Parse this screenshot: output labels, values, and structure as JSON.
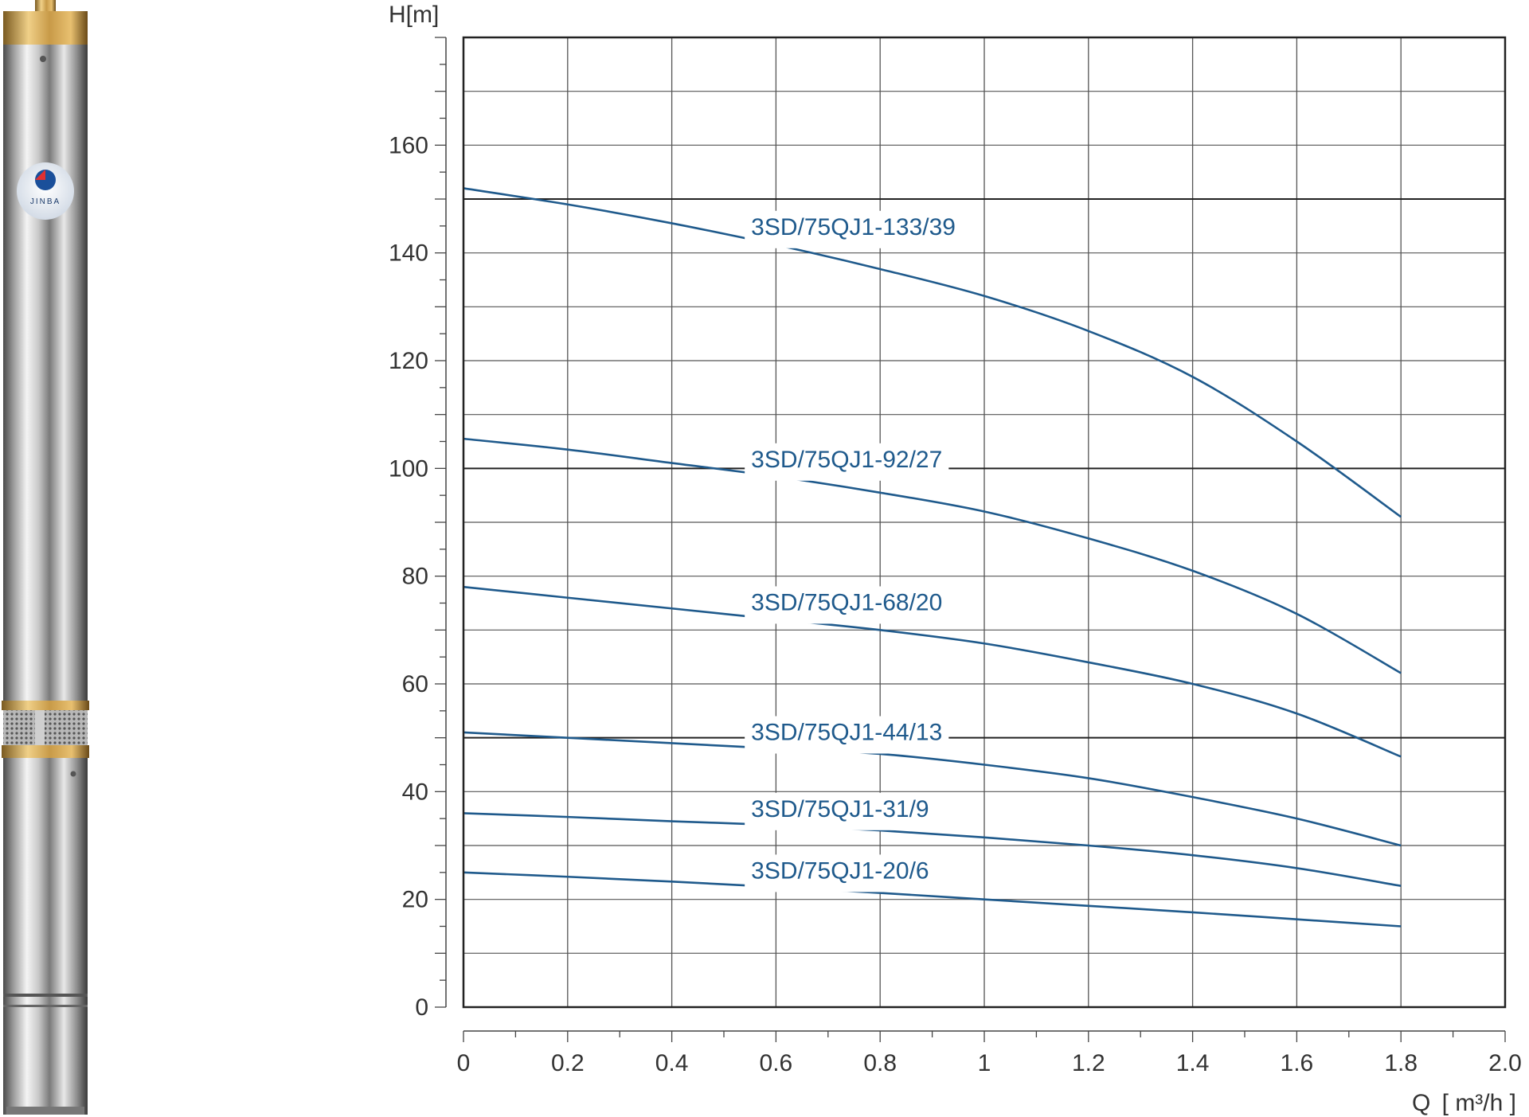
{
  "logo": {
    "text": "JINBA"
  },
  "colors": {
    "curve": "#1f5a8c",
    "grid": "#555555",
    "frame": "#222222",
    "label_bg": "#ffffff"
  },
  "chart_data": {
    "type": "line",
    "title": "",
    "ylabel": "H[m]",
    "xlabel_prefix": "Q",
    "xlabel_unit": "m³/h",
    "xlim": [
      0,
      2.0
    ],
    "ylim": [
      0,
      180
    ],
    "x_ticks": [
      "0",
      "0.2",
      "0.4",
      "0.6",
      "0.8",
      "1",
      "1.2",
      "1.4",
      "1.6",
      "1.8",
      "2.0"
    ],
    "y_ticks": [
      "0",
      "20",
      "40",
      "60",
      "80",
      "100",
      "120",
      "140",
      "160"
    ],
    "grid": true,
    "series": [
      {
        "name": "3SD/75QJ1-133/39",
        "x": [
          0,
          0.2,
          0.4,
          0.6,
          0.8,
          1.0,
          1.2,
          1.4,
          1.6,
          1.8
        ],
        "y": [
          152,
          149,
          145.5,
          141.5,
          137,
          132,
          125.5,
          117,
          105,
          91
        ]
      },
      {
        "name": "3SD/75QJ1-92/27",
        "x": [
          0,
          0.2,
          0.4,
          0.6,
          0.8,
          1.0,
          1.2,
          1.4,
          1.6,
          1.8
        ],
        "y": [
          105.5,
          103.5,
          101,
          98.5,
          95.5,
          92,
          87,
          81,
          73,
          62
        ]
      },
      {
        "name": "3SD/75QJ1-68/20",
        "x": [
          0,
          0.2,
          0.4,
          0.6,
          0.8,
          1.0,
          1.2,
          1.4,
          1.6,
          1.8
        ],
        "y": [
          78,
          76,
          74,
          72,
          70,
          67.5,
          64,
          60,
          54.5,
          46.5
        ]
      },
      {
        "name": "3SD/75QJ1-44/13",
        "x": [
          0,
          0.2,
          0.4,
          0.6,
          0.8,
          1.0,
          1.2,
          1.4,
          1.6,
          1.8
        ],
        "y": [
          51,
          50,
          49,
          48,
          47,
          45,
          42.5,
          39,
          35,
          30
        ]
      },
      {
        "name": "3SD/75QJ1-31/9",
        "x": [
          0,
          0.2,
          0.4,
          0.6,
          0.8,
          1.0,
          1.2,
          1.4,
          1.6,
          1.8
        ],
        "y": [
          36,
          35.3,
          34.5,
          33.8,
          32.8,
          31.5,
          30,
          28.2,
          25.8,
          22.5
        ]
      },
      {
        "name": "3SD/75QJ1-20/6",
        "x": [
          0,
          0.2,
          0.4,
          0.6,
          0.8,
          1.0,
          1.2,
          1.4,
          1.6,
          1.8
        ],
        "y": [
          25,
          24.2,
          23.3,
          22.3,
          21.2,
          20,
          18.8,
          17.6,
          16.3,
          15
        ]
      }
    ]
  }
}
